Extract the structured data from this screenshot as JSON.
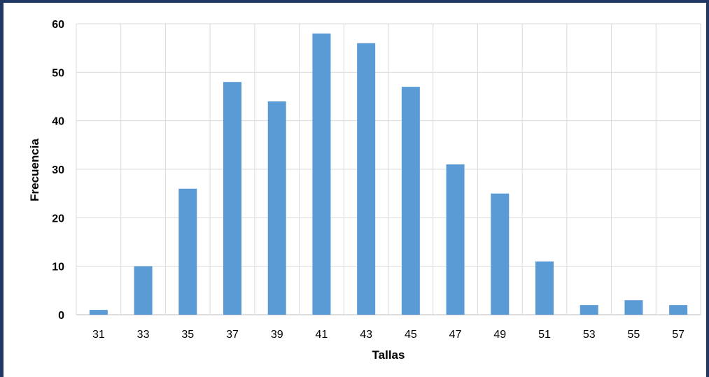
{
  "chart_data": {
    "type": "bar",
    "title": "",
    "xlabel": "Tallas",
    "ylabel": "Frecuencia",
    "categories": [
      "31",
      "33",
      "35",
      "37",
      "39",
      "41",
      "43",
      "45",
      "47",
      "49",
      "51",
      "53",
      "55",
      "57"
    ],
    "values": [
      1,
      10,
      26,
      48,
      44,
      58,
      56,
      47,
      31,
      25,
      11,
      2,
      3,
      2
    ],
    "ylim": [
      0,
      60
    ],
    "yticks": [
      "0",
      "10",
      "20",
      "30",
      "40",
      "50",
      "60"
    ],
    "grid": true,
    "legend": "none",
    "colors": {
      "bar": "#5b9bd5",
      "grid": "#d9d9d9",
      "frame": "#1f3864"
    }
  }
}
